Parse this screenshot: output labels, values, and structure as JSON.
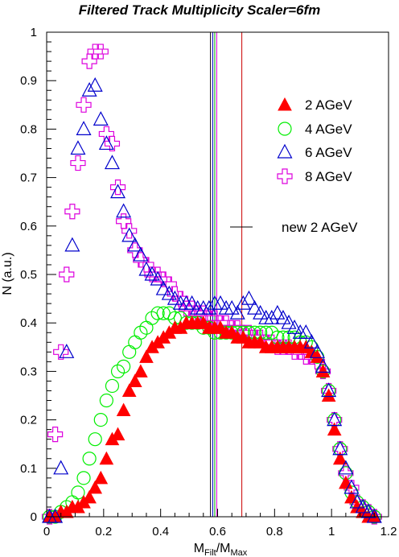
{
  "chart_data": {
    "type": "scatter",
    "title": "Filtered Track Multiplicity Scaler=6fm",
    "xlabel": "M",
    "xlabel_sub1": "Filt",
    "xlabel_slash": "/M",
    "xlabel_sub2": "Max",
    "ylabel": "N (a.u.)",
    "xlim": [
      0,
      1.2
    ],
    "ylim": [
      0,
      1
    ],
    "x_ticks": [
      "0",
      "0.2",
      "0.4",
      "0.6",
      "0.8",
      "1",
      "1.2"
    ],
    "y_ticks": [
      "0",
      "0.1",
      "0.2",
      "0.3",
      "0.4",
      "0.5",
      "0.6",
      "0.7",
      "0.8",
      "0.9",
      "1"
    ],
    "legend_placement": "right",
    "series": [
      {
        "name": "2 AGeV",
        "marker": "filled-triangle",
        "color": "#ff0000",
        "x": [
          0.01,
          0.03,
          0.05,
          0.07,
          0.09,
          0.11,
          0.13,
          0.15,
          0.17,
          0.19,
          0.21,
          0.23,
          0.25,
          0.27,
          0.29,
          0.31,
          0.33,
          0.35,
          0.37,
          0.39,
          0.41,
          0.43,
          0.45,
          0.47,
          0.49,
          0.51,
          0.53,
          0.55,
          0.57,
          0.59,
          0.61,
          0.63,
          0.65,
          0.67,
          0.69,
          0.71,
          0.73,
          0.75,
          0.77,
          0.79,
          0.81,
          0.83,
          0.85,
          0.87,
          0.89,
          0.91,
          0.93,
          0.95,
          0.97,
          0.99,
          1.01,
          1.03,
          1.05,
          1.07,
          1.09,
          1.11,
          1.13,
          1.15
        ],
        "y": [
          0.0,
          0.0,
          0.01,
          0.01,
          0.02,
          0.02,
          0.03,
          0.04,
          0.06,
          0.08,
          0.12,
          0.16,
          0.17,
          0.22,
          0.26,
          0.28,
          0.3,
          0.33,
          0.35,
          0.36,
          0.37,
          0.38,
          0.39,
          0.39,
          0.4,
          0.4,
          0.4,
          0.4,
          0.39,
          0.39,
          0.39,
          0.38,
          0.38,
          0.37,
          0.37,
          0.36,
          0.36,
          0.36,
          0.35,
          0.35,
          0.35,
          0.35,
          0.35,
          0.35,
          0.35,
          0.35,
          0.34,
          0.33,
          0.3,
          0.25,
          0.18,
          0.12,
          0.07,
          0.04,
          0.02,
          0.01,
          0.0,
          0.0
        ]
      },
      {
        "name": "4 AGeV",
        "marker": "open-circle",
        "color": "#00ee00",
        "x": [
          0.01,
          0.03,
          0.05,
          0.07,
          0.09,
          0.11,
          0.13,
          0.15,
          0.17,
          0.19,
          0.21,
          0.23,
          0.25,
          0.27,
          0.29,
          0.31,
          0.33,
          0.35,
          0.37,
          0.39,
          0.41,
          0.43,
          0.45,
          0.47,
          0.49,
          0.51,
          0.53,
          0.55,
          0.57,
          0.59,
          0.61,
          0.63,
          0.65,
          0.67,
          0.69,
          0.71,
          0.73,
          0.75,
          0.77,
          0.79,
          0.81,
          0.83,
          0.85,
          0.87,
          0.89,
          0.91,
          0.93,
          0.95,
          0.97,
          0.99,
          1.01,
          1.03,
          1.05,
          1.07,
          1.09,
          1.11,
          1.13,
          1.15
        ],
        "y": [
          0.0,
          0.0,
          0.01,
          0.02,
          0.03,
          0.05,
          0.08,
          0.12,
          0.16,
          0.2,
          0.24,
          0.27,
          0.3,
          0.31,
          0.34,
          0.36,
          0.38,
          0.39,
          0.41,
          0.42,
          0.42,
          0.42,
          0.41,
          0.41,
          0.4,
          0.4,
          0.4,
          0.39,
          0.39,
          0.38,
          0.38,
          0.38,
          0.38,
          0.38,
          0.38,
          0.38,
          0.38,
          0.38,
          0.38,
          0.38,
          0.37,
          0.37,
          0.37,
          0.37,
          0.36,
          0.36,
          0.35,
          0.33,
          0.3,
          0.26,
          0.2,
          0.14,
          0.09,
          0.05,
          0.03,
          0.02,
          0.01,
          0.0
        ]
      },
      {
        "name": "6 AGeV",
        "marker": "open-triangle",
        "color": "#0000cc",
        "x": [
          0.01,
          0.03,
          0.05,
          0.07,
          0.09,
          0.11,
          0.13,
          0.15,
          0.17,
          0.19,
          0.21,
          0.23,
          0.25,
          0.27,
          0.29,
          0.31,
          0.33,
          0.35,
          0.37,
          0.39,
          0.41,
          0.43,
          0.45,
          0.47,
          0.49,
          0.51,
          0.53,
          0.55,
          0.57,
          0.59,
          0.61,
          0.63,
          0.65,
          0.67,
          0.69,
          0.71,
          0.73,
          0.75,
          0.77,
          0.79,
          0.81,
          0.83,
          0.85,
          0.87,
          0.89,
          0.91,
          0.93,
          0.95,
          0.97,
          0.99,
          1.01,
          1.03,
          1.05,
          1.07,
          1.09,
          1.11,
          1.13,
          1.15
        ],
        "y": [
          0.0,
          0.0,
          0.1,
          0.34,
          0.56,
          0.76,
          0.8,
          0.88,
          0.89,
          0.82,
          0.77,
          0.73,
          0.67,
          0.63,
          0.58,
          0.56,
          0.54,
          0.51,
          0.5,
          0.49,
          0.47,
          0.46,
          0.45,
          0.44,
          0.44,
          0.44,
          0.43,
          0.43,
          0.43,
          0.44,
          0.44,
          0.43,
          0.43,
          0.42,
          0.44,
          0.45,
          0.43,
          0.42,
          0.41,
          0.41,
          0.42,
          0.41,
          0.4,
          0.39,
          0.38,
          0.38,
          0.36,
          0.34,
          0.31,
          0.26,
          0.2,
          0.14,
          0.1,
          0.06,
          0.03,
          0.02,
          0.01,
          0.0
        ]
      },
      {
        "name": "8 AGeV",
        "marker": "open-cross",
        "color": "#dd00dd",
        "x": [
          0.01,
          0.03,
          0.05,
          0.07,
          0.09,
          0.11,
          0.13,
          0.15,
          0.17,
          0.19,
          0.21,
          0.23,
          0.25,
          0.27,
          0.29,
          0.31,
          0.33,
          0.35,
          0.37,
          0.39,
          0.41,
          0.43,
          0.45,
          0.47,
          0.49,
          0.51,
          0.53,
          0.55,
          0.57,
          0.59,
          0.61,
          0.63,
          0.65,
          0.67,
          0.69,
          0.71,
          0.73,
          0.75,
          0.77,
          0.79,
          0.81,
          0.83,
          0.85,
          0.87,
          0.89,
          0.91,
          0.93,
          0.95,
          0.97,
          0.99,
          1.01,
          1.03,
          1.05,
          1.07,
          1.09,
          1.11,
          1.13,
          1.15
        ],
        "y": [
          0.0,
          0.17,
          0.34,
          0.5,
          0.63,
          0.73,
          0.85,
          0.94,
          0.96,
          0.96,
          0.79,
          0.77,
          0.68,
          0.61,
          0.59,
          0.55,
          0.53,
          0.52,
          0.5,
          0.5,
          0.49,
          0.48,
          0.46,
          0.45,
          0.43,
          0.43,
          0.42,
          0.42,
          0.41,
          0.41,
          0.4,
          0.4,
          0.39,
          0.39,
          0.38,
          0.38,
          0.37,
          0.37,
          0.36,
          0.36,
          0.35,
          0.35,
          0.35,
          0.34,
          0.34,
          0.33,
          0.33,
          0.32,
          0.3,
          0.26,
          0.2,
          0.14,
          0.09,
          0.06,
          0.03,
          0.02,
          0.01,
          0.0
        ]
      },
      {
        "name": "new 2 AGeV",
        "marker": "line",
        "color": "#000000",
        "x": [],
        "y": []
      }
    ],
    "vertical_lines": [
      {
        "x": 0.575,
        "color": "#000000"
      },
      {
        "x": 0.583,
        "color": "#0000cc"
      },
      {
        "x": 0.59,
        "color": "#00aa00"
      },
      {
        "x": 0.597,
        "color": "#dd00dd"
      },
      {
        "x": 0.685,
        "color": "#cc0000"
      }
    ]
  }
}
